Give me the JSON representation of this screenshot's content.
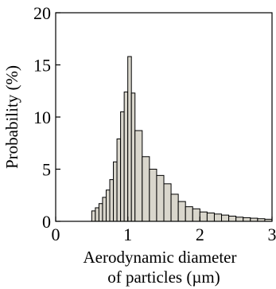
{
  "chart_data": {
    "type": "bar",
    "title": "",
    "xlabel_lines": [
      "Aerodynamic diameter",
      "of particles (µm)"
    ],
    "ylabel": "Probability (%)",
    "xlim": [
      0,
      3
    ],
    "ylim": [
      0,
      20
    ],
    "xticks": [
      0,
      1,
      2,
      3
    ],
    "yticks": [
      0,
      5,
      10,
      15,
      20
    ],
    "grid": false,
    "bar_color": "#d9d6cc",
    "bins": [
      {
        "x0": 0.5,
        "x1": 0.55,
        "value": 1.0
      },
      {
        "x0": 0.55,
        "x1": 0.6,
        "value": 1.3
      },
      {
        "x0": 0.6,
        "x1": 0.65,
        "value": 1.7
      },
      {
        "x0": 0.65,
        "x1": 0.7,
        "value": 2.3
      },
      {
        "x0": 0.7,
        "x1": 0.75,
        "value": 3.0
      },
      {
        "x0": 0.75,
        "x1": 0.8,
        "value": 4.0
      },
      {
        "x0": 0.8,
        "x1": 0.85,
        "value": 5.7
      },
      {
        "x0": 0.85,
        "x1": 0.9,
        "value": 7.9
      },
      {
        "x0": 0.9,
        "x1": 0.95,
        "value": 10.5
      },
      {
        "x0": 0.95,
        "x1": 1.0,
        "value": 12.4
      },
      {
        "x0": 1.0,
        "x1": 1.05,
        "value": 15.8
      },
      {
        "x0": 1.05,
        "x1": 1.1,
        "value": 12.3
      },
      {
        "x0": 1.1,
        "x1": 1.2,
        "value": 8.7
      },
      {
        "x0": 1.2,
        "x1": 1.3,
        "value": 6.2
      },
      {
        "x0": 1.3,
        "x1": 1.4,
        "value": 5.0
      },
      {
        "x0": 1.4,
        "x1": 1.5,
        "value": 4.4
      },
      {
        "x0": 1.5,
        "x1": 1.6,
        "value": 3.6
      },
      {
        "x0": 1.6,
        "x1": 1.7,
        "value": 2.6
      },
      {
        "x0": 1.7,
        "x1": 1.8,
        "value": 1.9
      },
      {
        "x0": 1.8,
        "x1": 1.9,
        "value": 1.4
      },
      {
        "x0": 1.9,
        "x1": 2.0,
        "value": 1.2
      },
      {
        "x0": 2.0,
        "x1": 2.1,
        "value": 0.9
      },
      {
        "x0": 2.1,
        "x1": 2.2,
        "value": 0.8
      },
      {
        "x0": 2.2,
        "x1": 2.3,
        "value": 0.7
      },
      {
        "x0": 2.3,
        "x1": 2.4,
        "value": 0.6
      },
      {
        "x0": 2.4,
        "x1": 2.5,
        "value": 0.5
      },
      {
        "x0": 2.5,
        "x1": 2.6,
        "value": 0.4
      },
      {
        "x0": 2.6,
        "x1": 2.7,
        "value": 0.35
      },
      {
        "x0": 2.7,
        "x1": 2.8,
        "value": 0.3
      },
      {
        "x0": 2.8,
        "x1": 2.9,
        "value": 0.25
      },
      {
        "x0": 2.9,
        "x1": 3.0,
        "value": 0.2
      }
    ]
  }
}
